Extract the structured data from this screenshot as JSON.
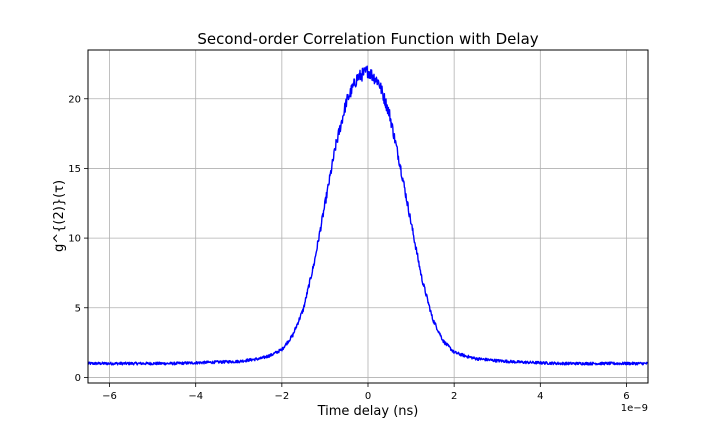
{
  "chart_data": {
    "type": "line",
    "title": "Second-order Correlation Function with Delay",
    "xlabel": "Time delay (ns)",
    "ylabel": "g^{(2)}(τ)",
    "x_offset_label": "1e−9",
    "xlim": [
      -6.5,
      6.5
    ],
    "ylim": [
      -0.4,
      23.5
    ],
    "x_ticks": [
      -6,
      -4,
      -2,
      0,
      2,
      4,
      6
    ],
    "x_tick_labels": [
      "−6",
      "−4",
      "−2",
      "0",
      "2",
      "4",
      "6"
    ],
    "y_ticks": [
      0,
      5,
      10,
      15,
      20
    ],
    "y_tick_labels": [
      "0",
      "5",
      "10",
      "15",
      "20"
    ],
    "grid": true,
    "series": [
      {
        "color": "#0000ff",
        "x": [
          -6.5,
          -6.0,
          -5.5,
          -5.0,
          -4.5,
          -4.0,
          -3.5,
          -3.0,
          -2.5,
          -2.25,
          -2.0,
          -1.75,
          -1.5,
          -1.25,
          -1.0,
          -0.75,
          -0.5,
          -0.25,
          0.0,
          0.25,
          0.5,
          0.75,
          1.0,
          1.25,
          1.5,
          1.75,
          2.0,
          2.25,
          2.5,
          3.0,
          3.5,
          4.0,
          4.5,
          5.0,
          5.5,
          6.0,
          6.5
        ],
        "y": [
          1.0,
          1.0,
          1.0,
          1.0,
          1.0,
          1.05,
          1.1,
          1.15,
          1.35,
          1.6,
          2.0,
          3.0,
          4.9,
          8.2,
          12.4,
          16.6,
          19.8,
          21.5,
          22.0,
          21.2,
          18.9,
          15.2,
          11.1,
          7.1,
          4.2,
          2.6,
          1.8,
          1.55,
          1.35,
          1.2,
          1.1,
          1.05,
          1.0,
          1.0,
          1.0,
          1.0,
          1.0
        ]
      }
    ]
  }
}
